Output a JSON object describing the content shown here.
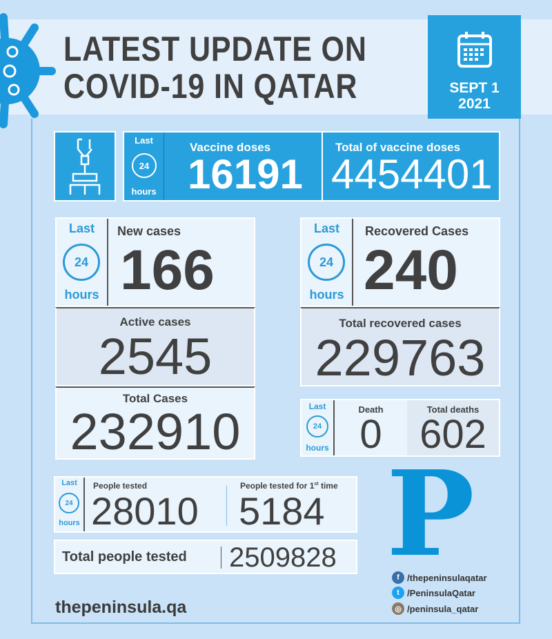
{
  "header": {
    "title_line1": "LATEST UPDATE ON",
    "title_line2": "COVID-19 IN QATAR",
    "date_line1": "SEPT 1",
    "date_line2": "2021"
  },
  "period": {
    "last": "Last",
    "clock": "24",
    "hours": "hours"
  },
  "vaccine": {
    "doses_label": "Vaccine doses",
    "doses_value": "16191",
    "total_label": "Total of vaccine doses",
    "total_value": "4454401"
  },
  "cases": {
    "new_label": "New cases",
    "new_value": "166",
    "active_label": "Active cases",
    "active_value": "2545",
    "total_label": "Total Cases",
    "total_value": "232910"
  },
  "recovered": {
    "label": "Recovered Cases",
    "value": "240",
    "total_label": "Total recovered cases",
    "total_value": "229763"
  },
  "deaths": {
    "label": "Death",
    "value": "0",
    "total_label": "Total deaths",
    "total_value": "602"
  },
  "tests": {
    "tested_label": "People tested",
    "tested_value": "28010",
    "first_label": "People tested for 1",
    "first_sup": "st",
    "first_suffix": " time",
    "first_value": "5184",
    "total_label": "Total people tested",
    "total_value": "2509828"
  },
  "brand": {
    "logo": "P",
    "website": "thepeninsula.qa",
    "facebook": "/thepeninsulaqatar",
    "twitter": "/PeninsulaQatar",
    "instagram": "/peninsula_qatar"
  },
  "colors": {
    "accent": "#28a2de",
    "text": "#404040",
    "background": "#c9e2f8"
  }
}
